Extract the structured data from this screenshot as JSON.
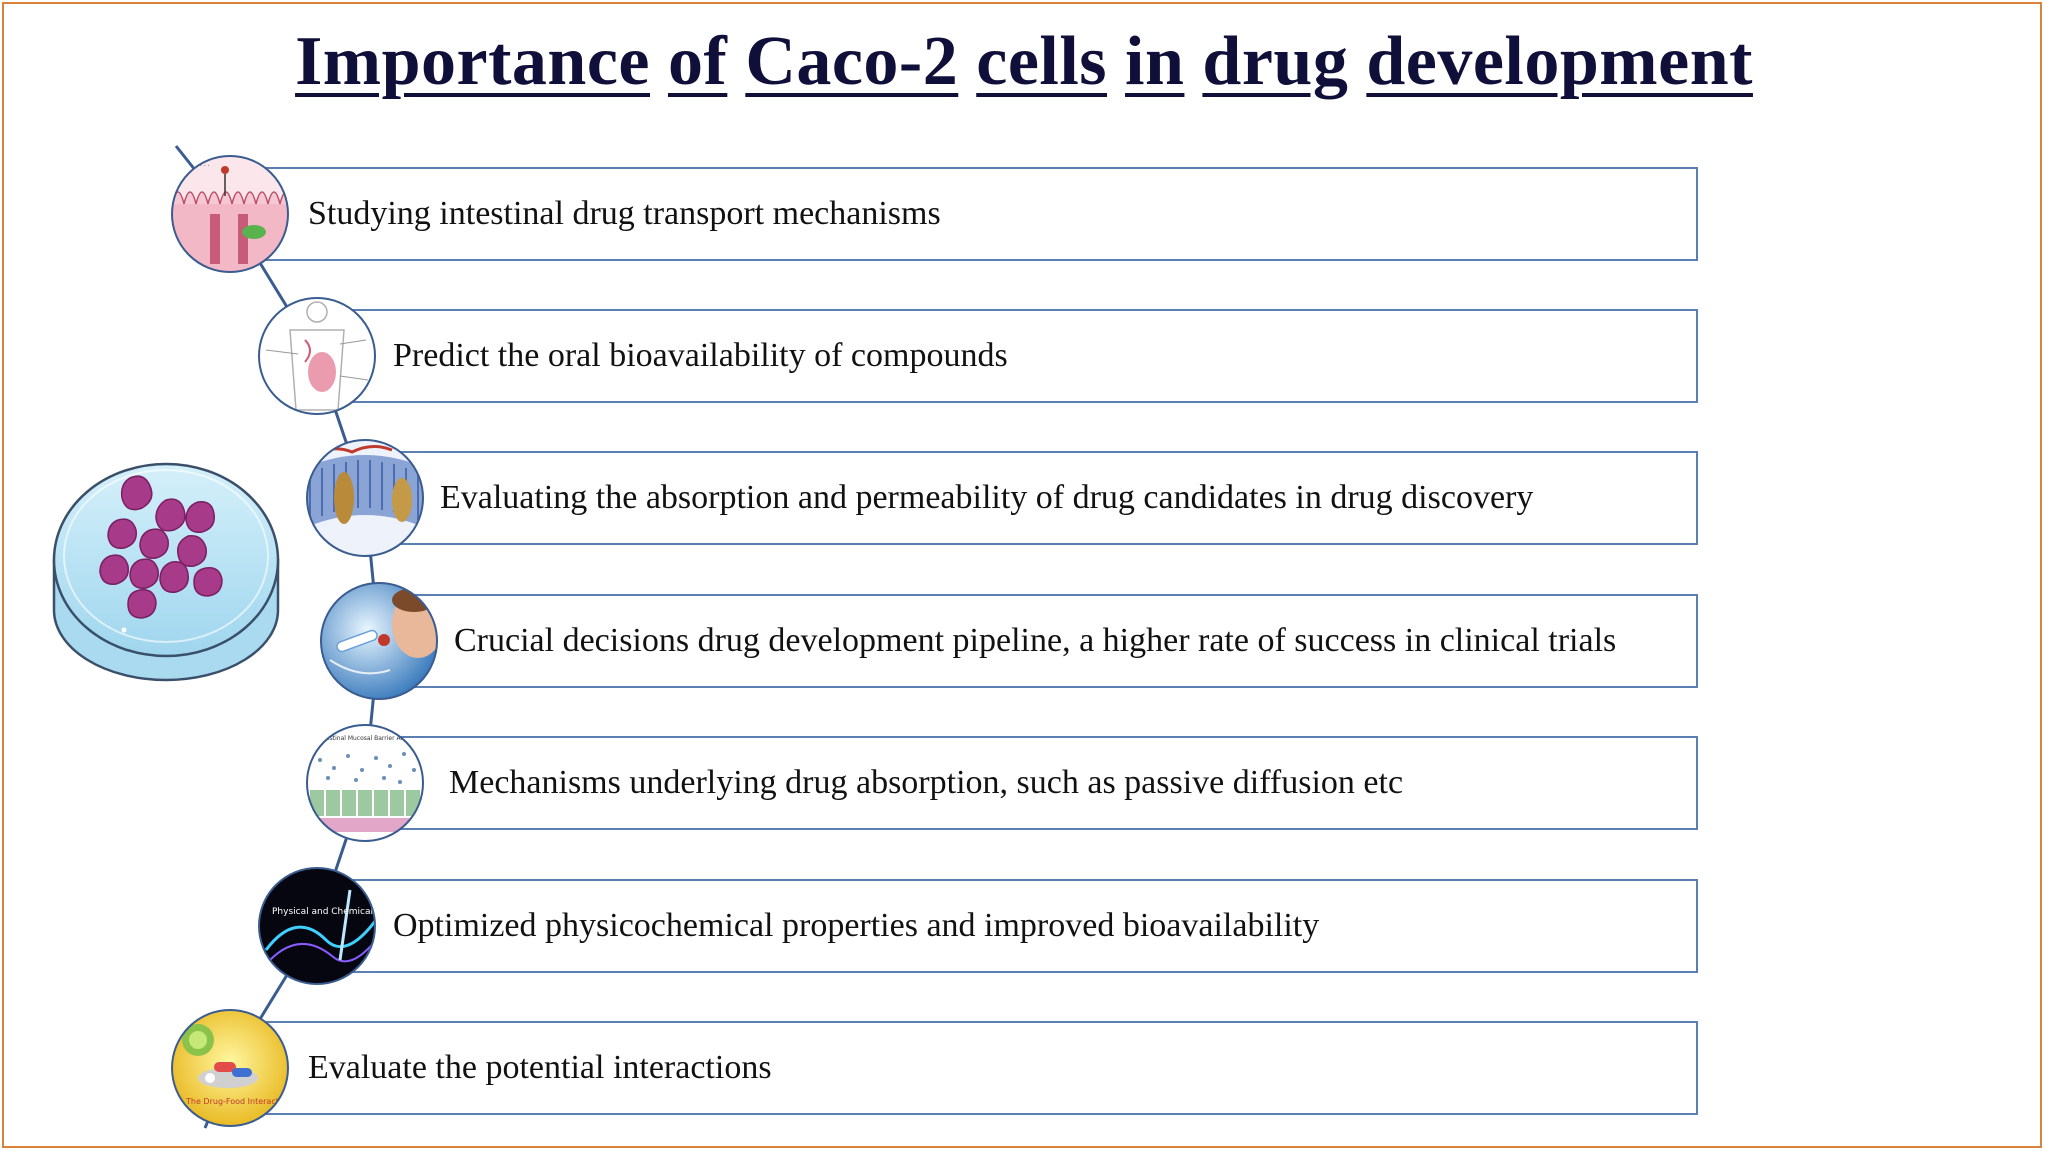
{
  "title_words": [
    "Importance",
    "of",
    "Caco-2",
    "cells",
    "in",
    "drug",
    "development"
  ],
  "items": [
    {
      "label": "Studying intestinal drug transport mechanisms",
      "icon": "intestinal-transport-icon"
    },
    {
      "label": "Predict the oral bioavailability of compounds",
      "icon": "human-body-icon"
    },
    {
      "label": "Evaluating the absorption and permeability of drug candidates in drug discovery",
      "icon": "cell-membrane-icon"
    },
    {
      "label": "Crucial decisions drug development pipeline, a higher rate of success in clinical trials",
      "icon": "lab-research-icon"
    },
    {
      "label": "Mechanisms underlying drug absorption, such as passive diffusion etc",
      "icon": "mucosal-barrier-icon"
    },
    {
      "label": "Optimized physicochemical properties and improved bioavailability",
      "icon": "physicochemical-icon"
    },
    {
      "label": "Evaluate the potential interactions",
      "icon": "drug-food-interaction-icon"
    }
  ],
  "icon_captions": {
    "physicochemical": "Physical and Chemical Properties",
    "drug_food": "The Drug-Food Interaction",
    "mucosal": "Intestinal Mucosal Barrier Anatomy"
  },
  "colors": {
    "title": "#0f0f3a",
    "box_border": "#5a7fb0",
    "connector": "#3a5c90",
    "frame": "#d9823e",
    "dish": "#bfe6f4",
    "cell": "#a83a8a"
  }
}
